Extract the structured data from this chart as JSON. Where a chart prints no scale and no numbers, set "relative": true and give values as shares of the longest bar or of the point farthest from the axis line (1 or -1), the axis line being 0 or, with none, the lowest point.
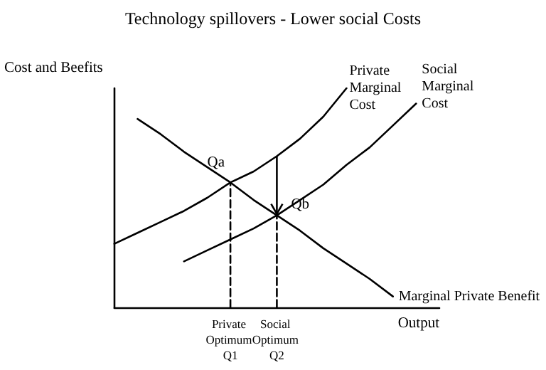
{
  "chart_data": {
    "type": "line",
    "title": "Technology spillovers - Lower social Costs",
    "xlabel": "Output",
    "ylabel": "Cost and Beefits",
    "relative": true,
    "legend": false,
    "grid": false,
    "marker": "none",
    "categories": [
      null,
      null,
      null,
      null,
      null,
      "Private Optimum Q1",
      null,
      "Social Optimum Q2",
      null,
      null,
      null,
      null,
      null,
      null,
      null
    ],
    "series": [
      {
        "name": "Private Marginal Cost",
        "color": "#000000",
        "values": [
          0.29,
          0.34,
          0.39,
          0.44,
          0.5,
          0.57,
          0.62,
          0.69,
          0.77,
          0.87,
          1.0,
          null,
          null,
          null,
          null
        ]
      },
      {
        "name": "Social Marginal Cost",
        "color": "#000000",
        "values": [
          null,
          null,
          null,
          0.21,
          0.26,
          0.31,
          0.36,
          0.42,
          0.49,
          0.56,
          0.65,
          0.73,
          0.83,
          0.93,
          null
        ]
      },
      {
        "name": "Marginal Private Benefit",
        "color": "#000000",
        "values": [
          null,
          0.86,
          0.79,
          0.71,
          0.64,
          0.57,
          0.49,
          0.42,
          0.35,
          0.27,
          0.2,
          0.13,
          0.05,
          null,
          null
        ]
      },
      {
        "type": "line",
        "line_style": "dashed",
        "color": "#000000",
        "x": [
          "Private Optimum Q1",
          "Private Optimum Q1"
        ],
        "values": [
          0,
          0.57
        ]
      },
      {
        "type": "line",
        "line_style": "dashed",
        "color": "#000000",
        "x": [
          "Social Optimum Q2",
          "Social Optimum Q2"
        ],
        "values": [
          0,
          0.42
        ]
      }
    ],
    "annotations": [
      {
        "text": "Qa",
        "x": "Private Optimum Q1",
        "y": 0.57
      },
      {
        "text": "Qb",
        "x": "Social Optimum Q2",
        "y": 0.42
      }
    ]
  }
}
